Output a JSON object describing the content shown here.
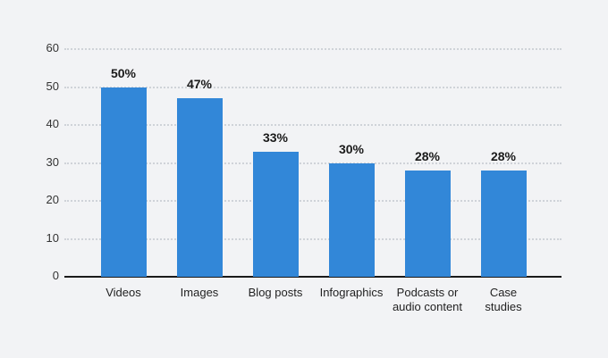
{
  "chart_data": {
    "type": "bar",
    "title": "",
    "xlabel": "",
    "ylabel": "",
    "categories": [
      "Videos",
      "Images",
      "Blog posts",
      "Infographics",
      "Podcasts or\naudio content",
      "Case\nstudies"
    ],
    "values": [
      50,
      47,
      33,
      30,
      28,
      28
    ],
    "value_labels": [
      "50%",
      "47%",
      "33%",
      "30%",
      "28%",
      "28%"
    ],
    "yticks": [
      0,
      10,
      20,
      30,
      40,
      50,
      60
    ],
    "ylim": [
      0,
      60
    ],
    "grid": true,
    "legend": null,
    "bar_color": "#3287d8"
  }
}
